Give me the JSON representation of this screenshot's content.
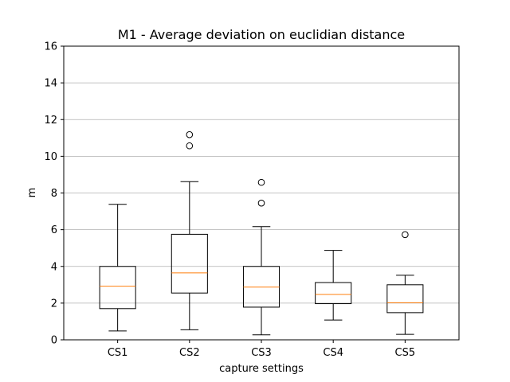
{
  "chart_data": {
    "type": "box",
    "title": "M1 - Average deviation on euclidian distance",
    "xlabel": "capture settings",
    "ylabel": "m",
    "ylim": [
      0,
      16
    ],
    "yticks": [
      0,
      2,
      4,
      6,
      8,
      10,
      12,
      14,
      16
    ],
    "grid": "y-major",
    "colors": {
      "box": "#000000",
      "median": "#ff7f0e",
      "grid": "#b0b0b0"
    },
    "categories": [
      "CS1",
      "CS2",
      "CS3",
      "CS4",
      "CS5"
    ],
    "boxes": [
      {
        "label": "CS1",
        "whisker_low": 0.48,
        "q1": 1.7,
        "median": 2.92,
        "q3": 4.0,
        "whisker_high": 7.38,
        "outliers": []
      },
      {
        "label": "CS2",
        "whisker_low": 0.55,
        "q1": 2.55,
        "median": 3.65,
        "q3": 5.75,
        "whisker_high": 8.62,
        "outliers": [
          10.57,
          11.18
        ]
      },
      {
        "label": "CS3",
        "whisker_low": 0.27,
        "q1": 1.78,
        "median": 2.87,
        "q3": 4.0,
        "whisker_high": 6.17,
        "outliers": [
          7.45,
          8.58
        ]
      },
      {
        "label": "CS4",
        "whisker_low": 1.08,
        "q1": 1.97,
        "median": 2.47,
        "q3": 3.12,
        "whisker_high": 4.87,
        "outliers": []
      },
      {
        "label": "CS5",
        "whisker_low": 0.3,
        "q1": 1.48,
        "median": 2.02,
        "q3": 3.0,
        "whisker_high": 3.52,
        "outliers": [
          5.73
        ]
      }
    ]
  }
}
